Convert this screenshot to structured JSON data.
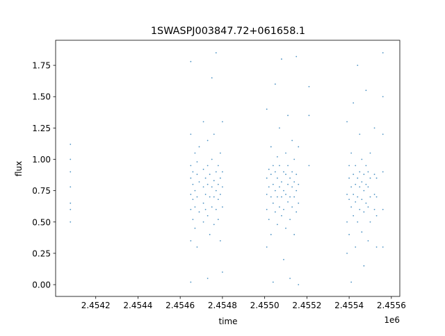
{
  "chart_data": {
    "type": "scatter",
    "title": "1SWASPJ003847.72+061658.1",
    "xlabel": "time",
    "ylabel": "flux",
    "x_offset_text": "1e6",
    "xlim": [
      2.45401,
      2.45564
    ],
    "ylim": [
      -0.094,
      1.95
    ],
    "xticks": [
      2.4542,
      2.4544,
      2.4546,
      2.4548,
      2.455,
      2.4552,
      2.4554,
      2.4556
    ],
    "xtick_labels": [
      "2.4542",
      "2.4544",
      "2.4546",
      "2.4548",
      "2.4550",
      "2.4552",
      "2.4554",
      "2.4556"
    ],
    "yticks": [
      0,
      0.25,
      0.5,
      0.75,
      1.0,
      1.25,
      1.5,
      1.75
    ],
    "ytick_labels": [
      "0.00",
      "0.25",
      "0.50",
      "0.75",
      "1.00",
      "1.25",
      "1.50",
      "1.75"
    ],
    "grid": false,
    "marker_color": "#1f77b4",
    "points": [
      [
        2.45408,
        1.12
      ],
      [
        2.45408,
        1.0
      ],
      [
        2.45408,
        0.9
      ],
      [
        2.45408,
        0.78
      ],
      [
        2.45408,
        0.65
      ],
      [
        2.45408,
        0.6
      ],
      [
        2.45408,
        0.5
      ],
      [
        2.45465,
        0.72
      ],
      [
        2.45465,
        0.85
      ],
      [
        2.45465,
        0.95
      ],
      [
        2.45465,
        0.6
      ],
      [
        2.45465,
        1.2
      ],
      [
        2.45465,
        0.35
      ],
      [
        2.45465,
        0.02
      ],
      [
        2.45465,
        1.78
      ],
      [
        2.45466,
        0.8
      ],
      [
        2.45466,
        0.68
      ],
      [
        2.45466,
        0.9
      ],
      [
        2.45466,
        0.52
      ],
      [
        2.45467,
        1.05
      ],
      [
        2.45467,
        0.75
      ],
      [
        2.45467,
        0.62
      ],
      [
        2.45467,
        0.45
      ],
      [
        2.45468,
        0.88
      ],
      [
        2.45468,
        0.7
      ],
      [
        2.45468,
        0.98
      ],
      [
        2.45468,
        0.3
      ],
      [
        2.45469,
        0.82
      ],
      [
        2.45469,
        0.58
      ],
      [
        2.45469,
        1.1
      ],
      [
        2.45471,
        0.78
      ],
      [
        2.45471,
        0.65
      ],
      [
        2.45471,
        0.92
      ],
      [
        2.45471,
        0.5
      ],
      [
        2.45471,
        1.3
      ],
      [
        2.45472,
        0.85
      ],
      [
        2.45472,
        0.72
      ],
      [
        2.45472,
        0.6
      ],
      [
        2.45473,
        0.95
      ],
      [
        2.45473,
        0.8
      ],
      [
        2.45473,
        0.55
      ],
      [
        2.45473,
        1.15
      ],
      [
        2.45473,
        0.05
      ],
      [
        2.45474,
        0.7
      ],
      [
        2.45474,
        0.88
      ],
      [
        2.45474,
        0.4
      ],
      [
        2.45475,
        1.0
      ],
      [
        2.45475,
        0.78
      ],
      [
        2.45475,
        0.62
      ],
      [
        2.45475,
        1.65
      ],
      [
        2.45476,
        0.83
      ],
      [
        2.45476,
        0.7
      ],
      [
        2.45476,
        0.48
      ],
      [
        2.45476,
        1.2
      ],
      [
        2.45477,
        0.9
      ],
      [
        2.45477,
        0.75
      ],
      [
        2.45477,
        0.6
      ],
      [
        2.45477,
        1.85
      ],
      [
        2.45478,
        0.95
      ],
      [
        2.45478,
        0.8
      ],
      [
        2.45478,
        0.68
      ],
      [
        2.45478,
        0.52
      ],
      [
        2.45479,
        1.05
      ],
      [
        2.45479,
        0.85
      ],
      [
        2.45479,
        0.72
      ],
      [
        2.45479,
        0.35
      ],
      [
        2.4548,
        0.9
      ],
      [
        2.4548,
        0.78
      ],
      [
        2.4548,
        0.62
      ],
      [
        2.4548,
        1.3
      ],
      [
        2.4548,
        0.1
      ],
      [
        2.45501,
        0.72
      ],
      [
        2.45501,
        0.85
      ],
      [
        2.45501,
        0.6
      ],
      [
        2.45501,
        1.4
      ],
      [
        2.45501,
        0.3
      ],
      [
        2.45502,
        0.92
      ],
      [
        2.45502,
        0.78
      ],
      [
        2.45502,
        0.52
      ],
      [
        2.45503,
        0.7
      ],
      [
        2.45503,
        0.88
      ],
      [
        2.45503,
        1.1
      ],
      [
        2.45503,
        0.4
      ],
      [
        2.45504,
        0.8
      ],
      [
        2.45504,
        0.65
      ],
      [
        2.45504,
        0.95
      ],
      [
        2.45504,
        0.02
      ],
      [
        2.45505,
        0.75
      ],
      [
        2.45505,
        0.9
      ],
      [
        2.45505,
        0.58
      ],
      [
        2.45505,
        1.6
      ],
      [
        2.45506,
        0.85
      ],
      [
        2.45506,
        0.7
      ],
      [
        2.45506,
        1.02
      ],
      [
        2.45506,
        0.48
      ],
      [
        2.45507,
        0.78
      ],
      [
        2.45507,
        0.62
      ],
      [
        2.45507,
        0.95
      ],
      [
        2.45507,
        1.25
      ],
      [
        2.45508,
        0.82
      ],
      [
        2.45508,
        0.7
      ],
      [
        2.45508,
        0.55
      ],
      [
        2.45508,
        1.8
      ],
      [
        2.45509,
        0.9
      ],
      [
        2.45509,
        0.75
      ],
      [
        2.45509,
        0.6
      ],
      [
        2.45509,
        0.2
      ],
      [
        2.4551,
        0.88
      ],
      [
        2.4551,
        0.72
      ],
      [
        2.4551,
        1.05
      ],
      [
        2.4551,
        0.45
      ],
      [
        2.45511,
        0.8
      ],
      [
        2.45511,
        0.66
      ],
      [
        2.45511,
        0.95
      ],
      [
        2.45511,
        1.35
      ],
      [
        2.45512,
        0.85
      ],
      [
        2.45512,
        0.7
      ],
      [
        2.45512,
        0.52
      ],
      [
        2.45512,
        0.05
      ],
      [
        2.45513,
        0.78
      ],
      [
        2.45513,
        0.9
      ],
      [
        2.45513,
        0.62
      ],
      [
        2.45513,
        1.15
      ],
      [
        2.45514,
        0.82
      ],
      [
        2.45514,
        0.7
      ],
      [
        2.45514,
        1.0
      ],
      [
        2.45514,
        0.4
      ],
      [
        2.45515,
        0.75
      ],
      [
        2.45515,
        0.88
      ],
      [
        2.45515,
        0.58
      ],
      [
        2.45515,
        1.82
      ],
      [
        2.45516,
        0.8
      ],
      [
        2.45516,
        0.65
      ],
      [
        2.45516,
        1.1
      ],
      [
        2.45516,
        0.0
      ],
      [
        2.45521,
        1.58
      ],
      [
        2.45521,
        1.35
      ],
      [
        2.45521,
        0.95
      ],
      [
        2.45539,
        0.72
      ],
      [
        2.45539,
        0.5
      ],
      [
        2.45539,
        1.3
      ],
      [
        2.45539,
        0.25
      ],
      [
        2.4554,
        0.85
      ],
      [
        2.4554,
        0.68
      ],
      [
        2.4554,
        0.95
      ],
      [
        2.4554,
        0.4
      ],
      [
        2.45541,
        0.78
      ],
      [
        2.45541,
        0.62
      ],
      [
        2.45541,
        1.05
      ],
      [
        2.45541,
        0.02
      ],
      [
        2.45542,
        0.88
      ],
      [
        2.45542,
        0.72
      ],
      [
        2.45542,
        0.55
      ],
      [
        2.45542,
        1.45
      ],
      [
        2.45543,
        0.8
      ],
      [
        2.45543,
        0.66
      ],
      [
        2.45543,
        0.95
      ],
      [
        2.45543,
        0.3
      ],
      [
        2.45544,
        0.85
      ],
      [
        2.45544,
        0.7
      ],
      [
        2.45544,
        0.5
      ],
      [
        2.45544,
        1.75
      ],
      [
        2.45545,
        0.78
      ],
      [
        2.45545,
        0.9
      ],
      [
        2.45545,
        0.6
      ],
      [
        2.45545,
        1.2
      ],
      [
        2.45546,
        0.82
      ],
      [
        2.45546,
        0.68
      ],
      [
        2.45546,
        1.0
      ],
      [
        2.45546,
        0.42
      ],
      [
        2.45547,
        0.75
      ],
      [
        2.45547,
        0.88
      ],
      [
        2.45547,
        0.58
      ],
      [
        2.45547,
        0.15
      ],
      [
        2.45548,
        0.8
      ],
      [
        2.45548,
        0.65
      ],
      [
        2.45548,
        0.95
      ],
      [
        2.45548,
        1.55
      ],
      [
        2.45549,
        0.78
      ],
      [
        2.45549,
        0.62
      ],
      [
        2.45549,
        0.9
      ],
      [
        2.45549,
        0.35
      ],
      [
        2.4555,
        0.85
      ],
      [
        2.4555,
        0.7
      ],
      [
        2.4555,
        1.05
      ],
      [
        2.4555,
        0.5
      ],
      [
        2.45552,
        0.72
      ],
      [
        2.45552,
        0.6
      ],
      [
        2.45552,
        0.88
      ],
      [
        2.45552,
        1.25
      ],
      [
        2.45553,
        0.7
      ],
      [
        2.45553,
        0.55
      ],
      [
        2.45553,
        0.85
      ],
      [
        2.45553,
        0.3
      ],
      [
        2.45556,
        1.85
      ],
      [
        2.45556,
        1.5
      ],
      [
        2.45556,
        1.2
      ],
      [
        2.45556,
        0.9
      ],
      [
        2.45556,
        0.6
      ],
      [
        2.45556,
        0.3
      ]
    ]
  }
}
